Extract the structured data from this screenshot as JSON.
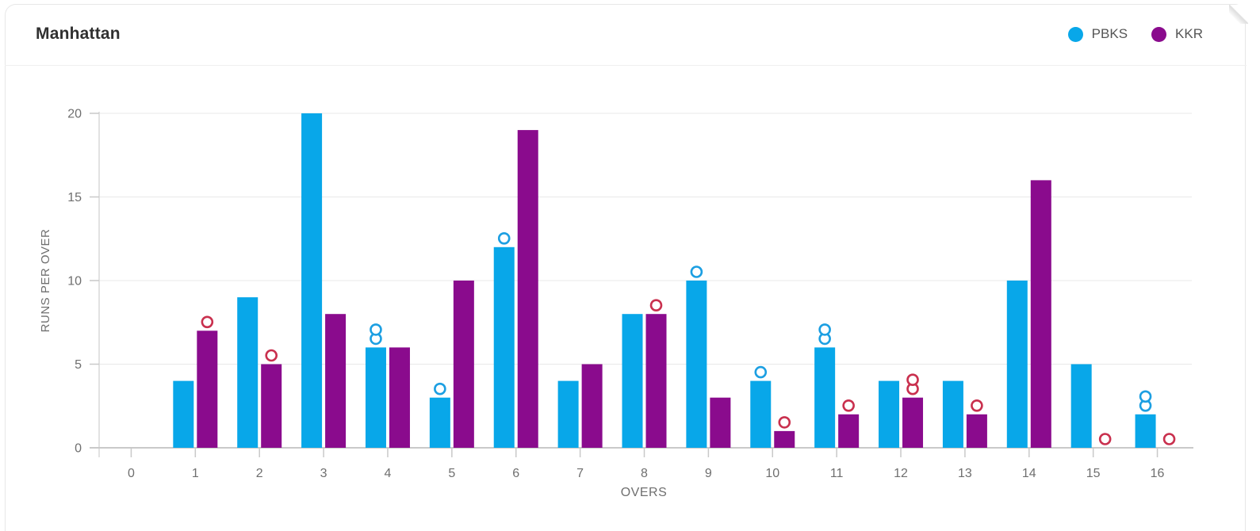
{
  "header": {
    "title": "Manhattan"
  },
  "legend": {
    "items": [
      {
        "label": "PBKS",
        "color": "#08a7e9"
      },
      {
        "label": "KKR",
        "color": "#8a0b8d"
      }
    ]
  },
  "chart_data": {
    "type": "bar",
    "bar_type": "grouped",
    "title": "Manhattan",
    "categories": [
      "0",
      "1",
      "2",
      "3",
      "4",
      "5",
      "6",
      "7",
      "8",
      "9",
      "10",
      "11",
      "12",
      "13",
      "14",
      "15",
      "16"
    ],
    "series": [
      {
        "name": "PBKS",
        "color": "#08a7e9",
        "values": [
          0,
          4,
          9,
          20,
          6,
          3,
          12,
          4,
          8,
          10,
          4,
          6,
          4,
          4,
          10,
          5,
          2
        ],
        "wickets": [
          0,
          0,
          0,
          0,
          2,
          1,
          1,
          0,
          0,
          1,
          1,
          2,
          0,
          0,
          0,
          0,
          2
        ],
        "wicket_marker_color": "#1c9fe2"
      },
      {
        "name": "KKR",
        "color": "#8a0b8d",
        "values": [
          0,
          7,
          5,
          8,
          6,
          10,
          19,
          5,
          8,
          3,
          1,
          2,
          3,
          2,
          16,
          0,
          0
        ],
        "wickets": [
          0,
          1,
          1,
          0,
          0,
          0,
          0,
          0,
          1,
          0,
          1,
          1,
          2,
          1,
          0,
          1,
          1
        ],
        "wicket_marker_color": "#c9304e"
      }
    ],
    "xlabel": "OVERS",
    "ylabel": "RUNS PER OVER",
    "ylim": [
      0,
      20
    ],
    "yticks": [
      0,
      5,
      10,
      15,
      20
    ],
    "grid": true,
    "legend_position": "top-right",
    "wicket_marker_shape": "open-circle"
  },
  "colors": {
    "card_background": "#ffffff",
    "card_border": "#e7e7e7",
    "gridline": "#e8e8e8",
    "axis_line": "#c9c9c9",
    "axis_tick": "#c9c9c9",
    "axis_text": "#6f6f6f",
    "title_text": "#303030",
    "legend_text": "#555555"
  }
}
